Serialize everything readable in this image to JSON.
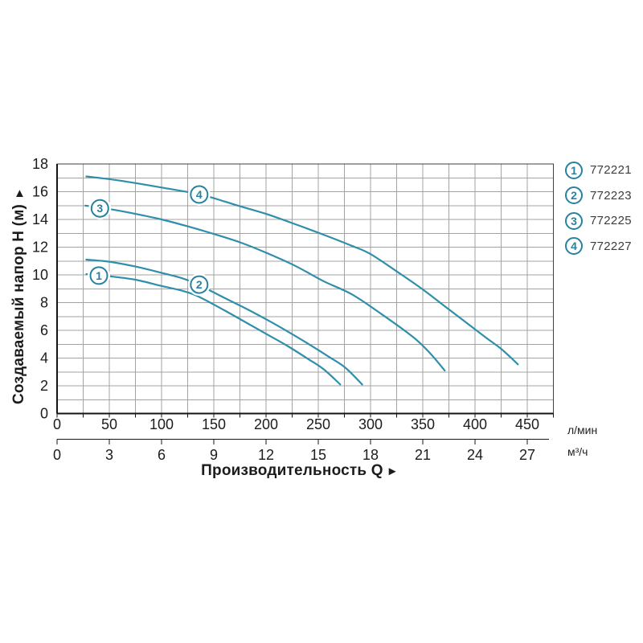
{
  "titles": {
    "y_title": "Создаваемый напор H (м)",
    "y_arrow": "▲",
    "x_title": "Производительность Q",
    "x_arrow": "►"
  },
  "units": {
    "primary": "л/мин",
    "secondary": "м³/ч"
  },
  "legend": {
    "items": [
      {
        "num": "1",
        "code": "772221"
      },
      {
        "num": "2",
        "code": "772223"
      },
      {
        "num": "3",
        "code": "772225"
      },
      {
        "num": "4",
        "code": "772227"
      }
    ]
  },
  "colors": {
    "curve": "#2f8fab",
    "badge": "#2781a0",
    "grid": "#a3a3a3",
    "border": "#3f3f3f",
    "axis": "#141414",
    "text": "#1c1c1c"
  },
  "chart_data": {
    "type": "line",
    "title": "",
    "xlabel": "Производительность Q",
    "ylabel": "Создаваемый напор H (м)",
    "x_unit_primary": "л/мин",
    "x_unit_secondary": "м³/ч",
    "xlim": [
      0,
      475
    ],
    "ylim": [
      0,
      18
    ],
    "grid": {
      "x_step": 25,
      "y_step": 1
    },
    "x_ticks_l_min": [
      0,
      50,
      100,
      150,
      200,
      250,
      300,
      350,
      400,
      450
    ],
    "x_ticks_m3_h": [
      0,
      3,
      6,
      9,
      12,
      15,
      18,
      21,
      24,
      27
    ],
    "m3h_to_lmin": 16.6667,
    "y_ticks": [
      0,
      2,
      4,
      6,
      8,
      10,
      12,
      14,
      16,
      18
    ],
    "legend_position": "right",
    "series": [
      {
        "name": "772221",
        "badge_num": "1",
        "badge_at": {
          "q": 40,
          "h": 9.95
        },
        "points": [
          [
            28,
            10.05
          ],
          [
            50,
            9.9
          ],
          [
            75,
            9.65
          ],
          [
            100,
            9.2
          ],
          [
            120,
            8.85
          ],
          [
            135,
            8.45
          ],
          [
            160,
            7.45
          ],
          [
            180,
            6.6
          ],
          [
            200,
            5.75
          ],
          [
            220,
            4.9
          ],
          [
            240,
            3.95
          ],
          [
            255,
            3.2
          ],
          [
            271,
            2.1
          ]
        ]
      },
      {
        "name": "772223",
        "badge_num": "2",
        "badge_at": {
          "q": 136,
          "h": 9.3
        },
        "points": [
          [
            28,
            11.1
          ],
          [
            50,
            10.95
          ],
          [
            75,
            10.6
          ],
          [
            100,
            10.15
          ],
          [
            120,
            9.75
          ],
          [
            135,
            9.3
          ],
          [
            160,
            8.35
          ],
          [
            180,
            7.6
          ],
          [
            200,
            6.8
          ],
          [
            220,
            5.95
          ],
          [
            240,
            5.05
          ],
          [
            260,
            4.1
          ],
          [
            276,
            3.3
          ],
          [
            292,
            2.1
          ]
        ]
      },
      {
        "name": "772225",
        "badge_num": "3",
        "badge_at": {
          "q": 41,
          "h": 14.8
        },
        "points": [
          [
            27,
            15.0
          ],
          [
            50,
            14.75
          ],
          [
            75,
            14.4
          ],
          [
            100,
            14.0
          ],
          [
            125,
            13.5
          ],
          [
            150,
            12.95
          ],
          [
            175,
            12.35
          ],
          [
            200,
            11.6
          ],
          [
            228,
            10.65
          ],
          [
            255,
            9.55
          ],
          [
            282,
            8.6
          ],
          [
            310,
            7.2
          ],
          [
            341,
            5.5
          ],
          [
            357,
            4.35
          ],
          [
            371,
            3.1
          ]
        ]
      },
      {
        "name": "772227",
        "badge_num": "4",
        "badge_at": {
          "q": 136,
          "h": 15.8
        },
        "points": [
          [
            28,
            17.1
          ],
          [
            60,
            16.8
          ],
          [
            100,
            16.3
          ],
          [
            137,
            15.8
          ],
          [
            160,
            15.3
          ],
          [
            175,
            14.95
          ],
          [
            200,
            14.4
          ],
          [
            230,
            13.6
          ],
          [
            255,
            12.9
          ],
          [
            282,
            12.1
          ],
          [
            300,
            11.5
          ],
          [
            330,
            10.0
          ],
          [
            350,
            8.95
          ],
          [
            370,
            7.8
          ],
          [
            390,
            6.65
          ],
          [
            410,
            5.5
          ],
          [
            426,
            4.6
          ],
          [
            441,
            3.55
          ]
        ]
      }
    ]
  }
}
